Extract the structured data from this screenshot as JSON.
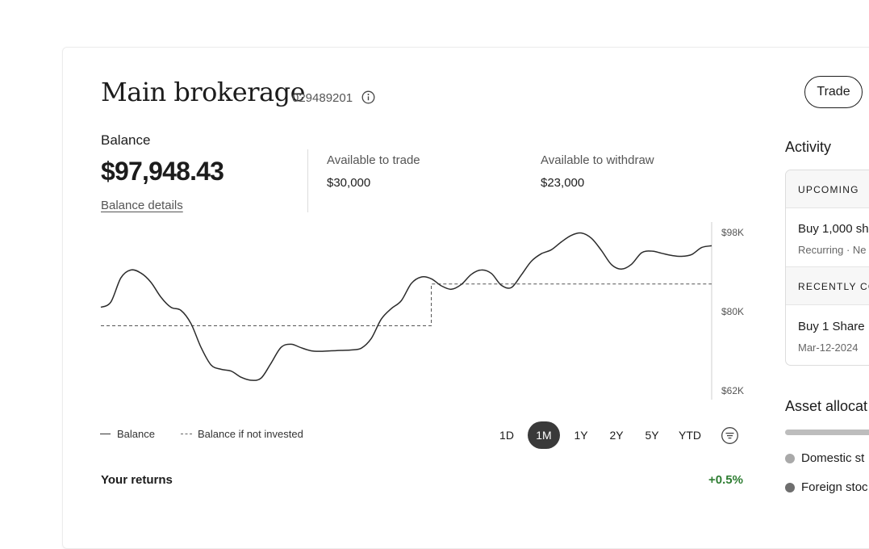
{
  "account": {
    "title": "Main brokerage",
    "number": "029489201",
    "trade_label": "Trade"
  },
  "balance": {
    "label": "Balance",
    "value": "$97,948.43",
    "details_link": "Balance details",
    "available_to_trade_label": "Available to trade",
    "available_to_trade_value": "$30,000",
    "available_to_withdraw_label": "Available to withdraw",
    "available_to_withdraw_value": "$23,000"
  },
  "chart": {
    "y_ticks": [
      "$98K",
      "$80K",
      "$62K"
    ],
    "legend_balance": "Balance",
    "legend_not_invested": "Balance if not invested",
    "ranges": [
      "1D",
      "1M",
      "1Y",
      "2Y",
      "5Y",
      "YTD"
    ],
    "active_range": "1M"
  },
  "chart_data": {
    "type": "line",
    "ylim": [
      62,
      98
    ],
    "y_unit": "$K",
    "series": [
      {
        "name": "Balance",
        "style": "solid",
        "values": [
          80.8,
          82,
          87.5,
          89.3,
          88.6,
          86.5,
          83.1,
          80.8,
          80.1,
          77.1,
          71.7,
          67.7,
          66.7,
          66.3,
          64.9,
          64.2,
          64.7,
          68.1,
          71.7,
          72.4,
          71.6,
          70.9,
          70.8,
          70.9,
          71,
          71.1,
          71.5,
          73.7,
          78.1,
          80.5,
          82.3,
          86.2,
          87.7,
          87.3,
          85.7,
          84.9,
          86,
          88.3,
          89.3,
          88.5,
          85.8,
          85.3,
          88.2,
          91.3,
          93,
          93.9,
          95.7,
          97.2,
          97.7,
          96.5,
          93.7,
          90.5,
          89.5,
          90.6,
          93.2,
          93.6,
          93.1,
          92.6,
          92.4,
          92.8,
          94.4,
          94.8
        ]
      },
      {
        "name": "Balance if not invested",
        "style": "dashed",
        "values": [
          76.6,
          76.6,
          76.6,
          76.6,
          76.6,
          76.6,
          76.6,
          76.6,
          76.6,
          76.6,
          76.6,
          76.6,
          76.6,
          76.6,
          76.6,
          76.6,
          76.6,
          76.6,
          76.6,
          76.6,
          76.6,
          76.6,
          76.6,
          76.6,
          76.6,
          76.6,
          76.6,
          76.6,
          76.6,
          76.6,
          76.6,
          76.6,
          76.6,
          86.1,
          86.1,
          86.1,
          86.1,
          86.1,
          86.1,
          86.1,
          86.1,
          86.1,
          86.1,
          86.1,
          86.1,
          86.1,
          86.1,
          86.1,
          86.1,
          86.1,
          86.1,
          86.1,
          86.1,
          86.1,
          86.1,
          86.1,
          86.1,
          86.1,
          86.1,
          86.1,
          86.1,
          86.1
        ]
      }
    ]
  },
  "returns": {
    "label": "Your returns",
    "value": "+0.5%"
  },
  "activity": {
    "title": "Activity",
    "upcoming_header": "UPCOMING",
    "upcoming_item_title": "Buy 1,000 sh",
    "upcoming_item_sub": "Recurring · Ne",
    "recent_header": "RECENTLY CO",
    "recent_item_title": "Buy 1 Share",
    "recent_item_sub": "Mar-12-2024"
  },
  "allocation": {
    "title": "Asset allocat",
    "items": [
      {
        "label": "Domestic st",
        "color": "#a9a9a9"
      },
      {
        "label": "Foreign stoc",
        "color": "#6e6e6e"
      }
    ]
  },
  "colors": {
    "positive": "#2e7d32",
    "line": "#2b2b2b",
    "active_range_bg": "#3a3a3a"
  }
}
